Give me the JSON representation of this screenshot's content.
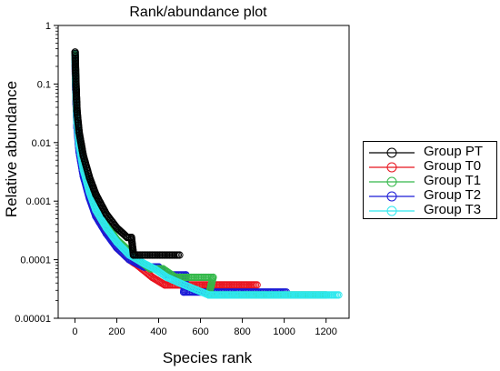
{
  "chart_data": {
    "type": "scatter",
    "title": "Rank/abundance plot",
    "xlabel": "Species rank",
    "ylabel": "Relative abundance",
    "x_ticks": [
      0,
      200,
      400,
      600,
      800,
      1000,
      1200
    ],
    "y_ticks": [
      1,
      0.1,
      0.01,
      0.001,
      0.0001,
      1e-05
    ],
    "y_tick_labels": [
      "1",
      "0.1",
      "0.01",
      "0.001",
      "0.0001",
      "0.00001"
    ],
    "xlim": [
      -80,
      1310
    ],
    "ylim": [
      1e-05,
      1
    ],
    "yscale": "log",
    "grid": false,
    "legend": "right",
    "series": [
      {
        "name": "Group PT",
        "color": "#000000",
        "points": [
          [
            1,
            0.35
          ],
          [
            3,
            0.18
          ],
          [
            6,
            0.08
          ],
          [
            10,
            0.035
          ],
          [
            20,
            0.015
          ],
          [
            40,
            0.006
          ],
          [
            70,
            0.0025
          ],
          [
            100,
            0.0013
          ],
          [
            150,
            0.0006
          ],
          [
            200,
            0.00035
          ],
          [
            250,
            0.00024
          ],
          [
            270,
            0.00024
          ],
          [
            280,
            0.00012
          ],
          [
            500,
            0.00012
          ]
        ]
      },
      {
        "name": "Group T0",
        "color": "#e8141e",
        "points": [
          [
            1,
            0.3
          ],
          [
            3,
            0.12
          ],
          [
            6,
            0.05
          ],
          [
            10,
            0.02
          ],
          [
            20,
            0.008
          ],
          [
            40,
            0.003
          ],
          [
            70,
            0.0012
          ],
          [
            100,
            0.0006
          ],
          [
            150,
            0.0003
          ],
          [
            200,
            0.00016
          ],
          [
            260,
            0.0001
          ],
          [
            300,
            8e-05
          ],
          [
            370,
            5e-05
          ],
          [
            430,
            3.7e-05
          ],
          [
            520,
            3.7e-05
          ],
          [
            870,
            3.7e-05
          ]
        ]
      },
      {
        "name": "Group T1",
        "color": "#34b84a",
        "points": [
          [
            1,
            0.32
          ],
          [
            3,
            0.14
          ],
          [
            6,
            0.06
          ],
          [
            10,
            0.025
          ],
          [
            20,
            0.01
          ],
          [
            40,
            0.004
          ],
          [
            70,
            0.0016
          ],
          [
            100,
            0.0008
          ],
          [
            150,
            0.0004
          ],
          [
            200,
            0.00022
          ],
          [
            260,
            0.00014
          ],
          [
            300,
            0.0001
          ],
          [
            360,
            7e-05
          ],
          [
            420,
            7e-05
          ],
          [
            480,
            5e-05
          ],
          [
            660,
            5e-05
          ],
          [
            640,
            2.5e-05
          ],
          [
            1200,
            2.5e-05
          ]
        ]
      },
      {
        "name": "Group T2",
        "color": "#1a1ad6",
        "points": [
          [
            1,
            0.28
          ],
          [
            3,
            0.1
          ],
          [
            6,
            0.045
          ],
          [
            10,
            0.018
          ],
          [
            20,
            0.007
          ],
          [
            40,
            0.0027
          ],
          [
            70,
            0.0011
          ],
          [
            100,
            0.00055
          ],
          [
            150,
            0.00028
          ],
          [
            200,
            0.00016
          ],
          [
            260,
            0.0001
          ],
          [
            330,
            7.5e-05
          ],
          [
            400,
            7.5e-05
          ],
          [
            440,
            5.5e-05
          ],
          [
            530,
            5.5e-05
          ],
          [
            520,
            2.8e-05
          ],
          [
            1010,
            2.8e-05
          ]
        ]
      },
      {
        "name": "Group T3",
        "color": "#2fe8ee",
        "points": [
          [
            1,
            0.33
          ],
          [
            3,
            0.13
          ],
          [
            6,
            0.055
          ],
          [
            10,
            0.022
          ],
          [
            20,
            0.009
          ],
          [
            40,
            0.0035
          ],
          [
            70,
            0.0014
          ],
          [
            100,
            0.0007
          ],
          [
            150,
            0.00035
          ],
          [
            200,
            0.0002
          ],
          [
            260,
            0.00012
          ],
          [
            320,
            9e-05
          ],
          [
            380,
            7e-05
          ],
          [
            440,
            5e-05
          ],
          [
            500,
            4e-05
          ],
          [
            640,
            2.5e-05
          ],
          [
            1260,
            2.5e-05
          ]
        ]
      }
    ]
  }
}
